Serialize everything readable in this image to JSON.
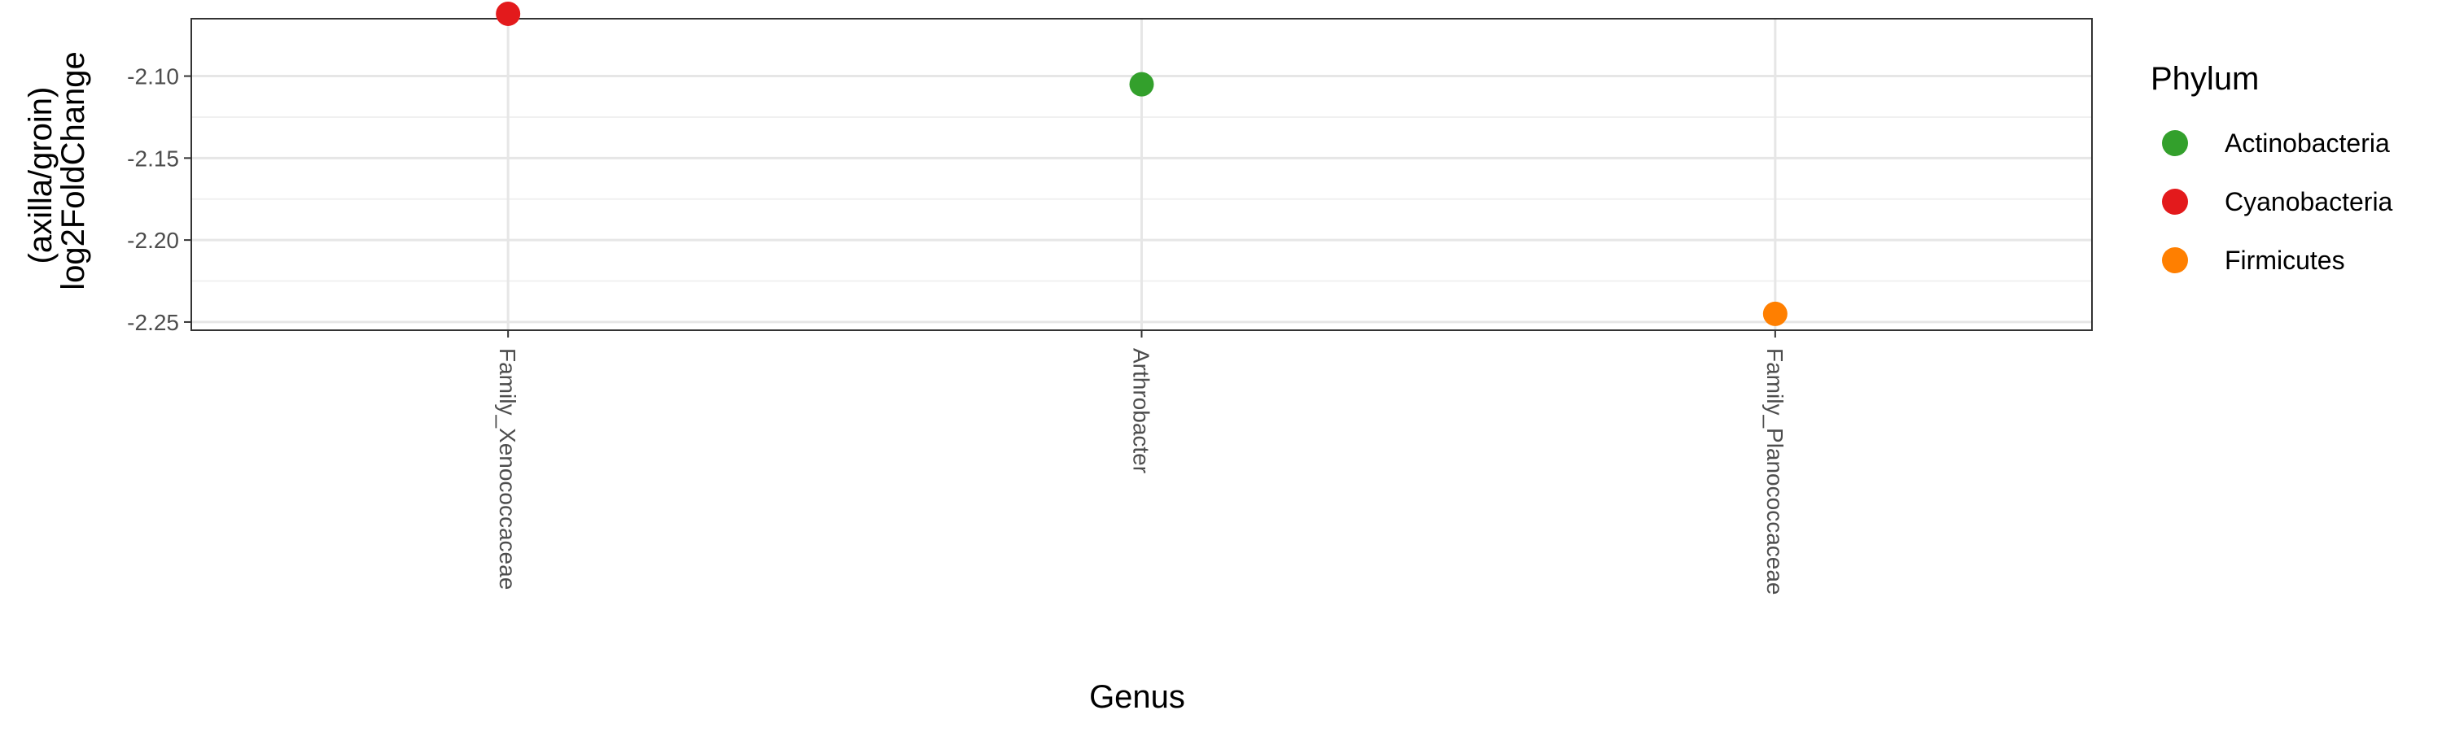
{
  "chart_data": {
    "type": "scatter",
    "title": "",
    "xlabel": "Genus",
    "ylabel_lines": [
      "(axilla/groin)",
      "log2FoldChange"
    ],
    "ylim": [
      -2.255,
      -2.065
    ],
    "yticks": [
      -2.1,
      -2.15,
      -2.2,
      -2.25
    ],
    "ytick_labels": [
      "-2.10",
      "-2.15",
      "-2.20",
      "-2.25"
    ],
    "categories": [
      "Family_Xenococcaceae",
      "Arthrobacter",
      "Family_Planococcaceae"
    ],
    "grid": true,
    "legend": {
      "title": "Phylum",
      "placement": "right",
      "entries": [
        {
          "label": "Actinobacteria",
          "color": "#33A02C"
        },
        {
          "label": "Cyanobacteria",
          "color": "#E31A1C"
        },
        {
          "label": "Firmicutes",
          "color": "#FF7F00"
        }
      ]
    },
    "points": [
      {
        "genus": "Family_Xenococcaceae",
        "phylum": "Cyanobacteria",
        "y": -2.062,
        "color": "#E31A1C"
      },
      {
        "genus": "Arthrobacter",
        "phylum": "Actinobacteria",
        "y": -2.105,
        "color": "#33A02C"
      },
      {
        "genus": "Family_Planococcaceae",
        "phylum": "Firmicutes",
        "y": -2.245,
        "color": "#FF7F00"
      }
    ]
  }
}
